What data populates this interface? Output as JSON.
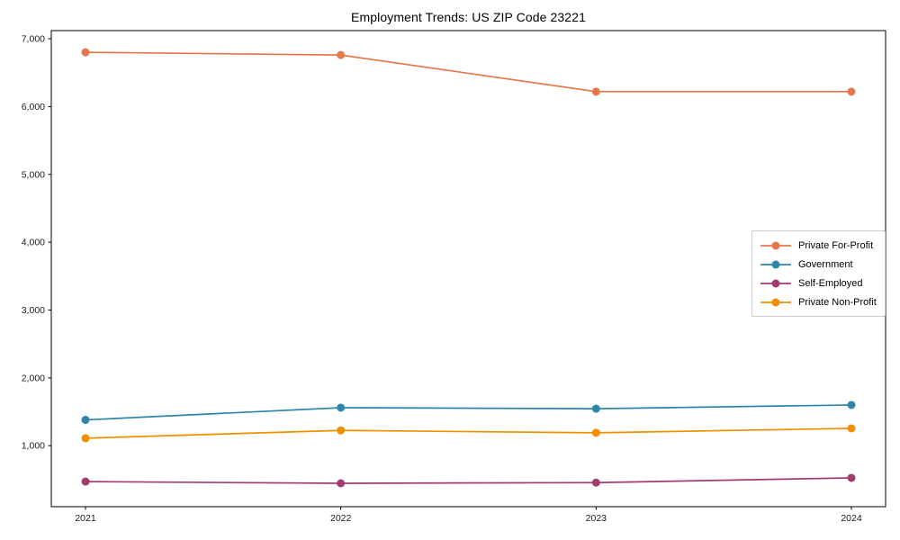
{
  "chart_data": {
    "type": "line",
    "title": "Employment Trends: US ZIP Code 23221",
    "xlabel": "",
    "ylabel": "",
    "categories": [
      "2021",
      "2022",
      "2023",
      "2024"
    ],
    "series": [
      {
        "name": "Private For-Profit",
        "color": "#E8764B",
        "values": [
          6800,
          6760,
          6220,
          6220
        ]
      },
      {
        "name": "Government",
        "color": "#2E86AB",
        "values": [
          1380,
          1560,
          1545,
          1600
        ]
      },
      {
        "name": "Self-Employed",
        "color": "#A23B72",
        "values": [
          470,
          445,
          455,
          525
        ]
      },
      {
        "name": "Private Non-Profit",
        "color": "#F18F01",
        "values": [
          1110,
          1225,
          1190,
          1255
        ]
      }
    ],
    "ylim": [
      100,
      7120
    ],
    "yticks": [
      1000,
      2000,
      3000,
      4000,
      5000,
      6000,
      7000
    ],
    "ytick_labels": [
      "1,000",
      "2,000",
      "3,000",
      "4,000",
      "5,000",
      "6,000",
      "7,000"
    ],
    "grid": false,
    "legend_position": "center right",
    "marker": "circle",
    "axis_color": "#000000",
    "background_color": "#ffffff"
  }
}
